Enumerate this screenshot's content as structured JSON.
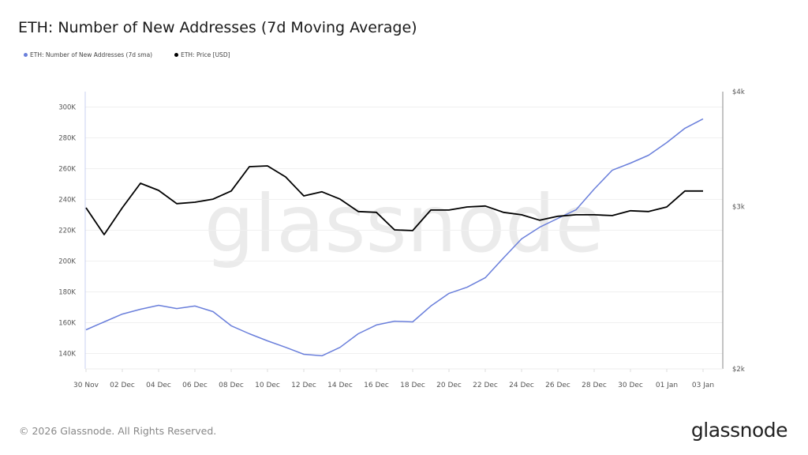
{
  "title": "ETH: Number of New Addresses (7d Moving Average)",
  "legend": [
    {
      "label": "ETH: Number of New Addresses (7d sma)",
      "color": "#6a7fdb"
    },
    {
      "label": "ETH: Price [USD]",
      "color": "#000000"
    }
  ],
  "footer": "© 2026 Glassnode. All Rights Reserved.",
  "logo": "glassnode",
  "watermark": "glassnode",
  "chart_data": {
    "type": "line",
    "title": "ETH: Number of New Addresses (7d Moving Average)",
    "x": [
      "30 Nov",
      "01 Dec",
      "02 Dec",
      "03 Dec",
      "04 Dec",
      "05 Dec",
      "06 Dec",
      "07 Dec",
      "08 Dec",
      "09 Dec",
      "10 Dec",
      "11 Dec",
      "12 Dec",
      "13 Dec",
      "14 Dec",
      "15 Dec",
      "16 Dec",
      "17 Dec",
      "18 Dec",
      "19 Dec",
      "20 Dec",
      "21 Dec",
      "22 Dec",
      "23 Dec",
      "24 Dec",
      "25 Dec",
      "26 Dec",
      "27 Dec",
      "28 Dec",
      "29 Dec",
      "30 Dec",
      "31 Dec",
      "01 Jan",
      "02 Jan",
      "03 Jan"
    ],
    "x_tick_labels": [
      "30 Nov",
      "02 Dec",
      "04 Dec",
      "06 Dec",
      "08 Dec",
      "10 Dec",
      "12 Dec",
      "14 Dec",
      "16 Dec",
      "18 Dec",
      "20 Dec",
      "22 Dec",
      "24 Dec",
      "26 Dec",
      "28 Dec",
      "30 Dec",
      "01 Jan",
      "03 Jan"
    ],
    "series": [
      {
        "name": "ETH: Number of New Addresses (7d sma)",
        "axis": "left",
        "color": "#6a7fdb",
        "values": [
          155400,
          160500,
          165600,
          168700,
          171300,
          169200,
          170800,
          167200,
          158000,
          152800,
          148200,
          144000,
          139500,
          138500,
          144000,
          152800,
          158500,
          161000,
          160500,
          170800,
          179000,
          183000,
          189200,
          202000,
          214400,
          222000,
          227700,
          233300,
          246700,
          259000,
          263600,
          268700,
          276900,
          286200,
          292300
        ]
      },
      {
        "name": "ETH: Price [USD]",
        "axis": "right",
        "color": "#000000",
        "values": [
          2992,
          2798,
          2992,
          3181,
          3125,
          3023,
          3034,
          3057,
          3120,
          3316,
          3322,
          3232,
          3082,
          3114,
          3057,
          2964,
          2958,
          2831,
          2826,
          2975,
          2975,
          2998,
          3005,
          2958,
          2940,
          2900,
          2929,
          2940,
          2940,
          2934,
          2970,
          2964,
          2998,
          3120,
          3120
        ]
      }
    ],
    "y_left": {
      "ticks": [
        140000,
        160000,
        180000,
        200000,
        220000,
        240000,
        260000,
        280000,
        300000
      ],
      "tick_labels": [
        "140K",
        "160K",
        "180K",
        "200K",
        "220K",
        "240K",
        "260K",
        "280K",
        "300K"
      ],
      "range": [
        130000,
        310000
      ],
      "scale": "linear"
    },
    "y_right": {
      "ticks": [
        2000,
        3000,
        4000
      ],
      "tick_labels": [
        "$2k",
        "$3k",
        "$4k"
      ],
      "range": [
        2000,
        4000
      ],
      "scale": "log"
    },
    "grid": true,
    "legend_position": "top-left"
  }
}
